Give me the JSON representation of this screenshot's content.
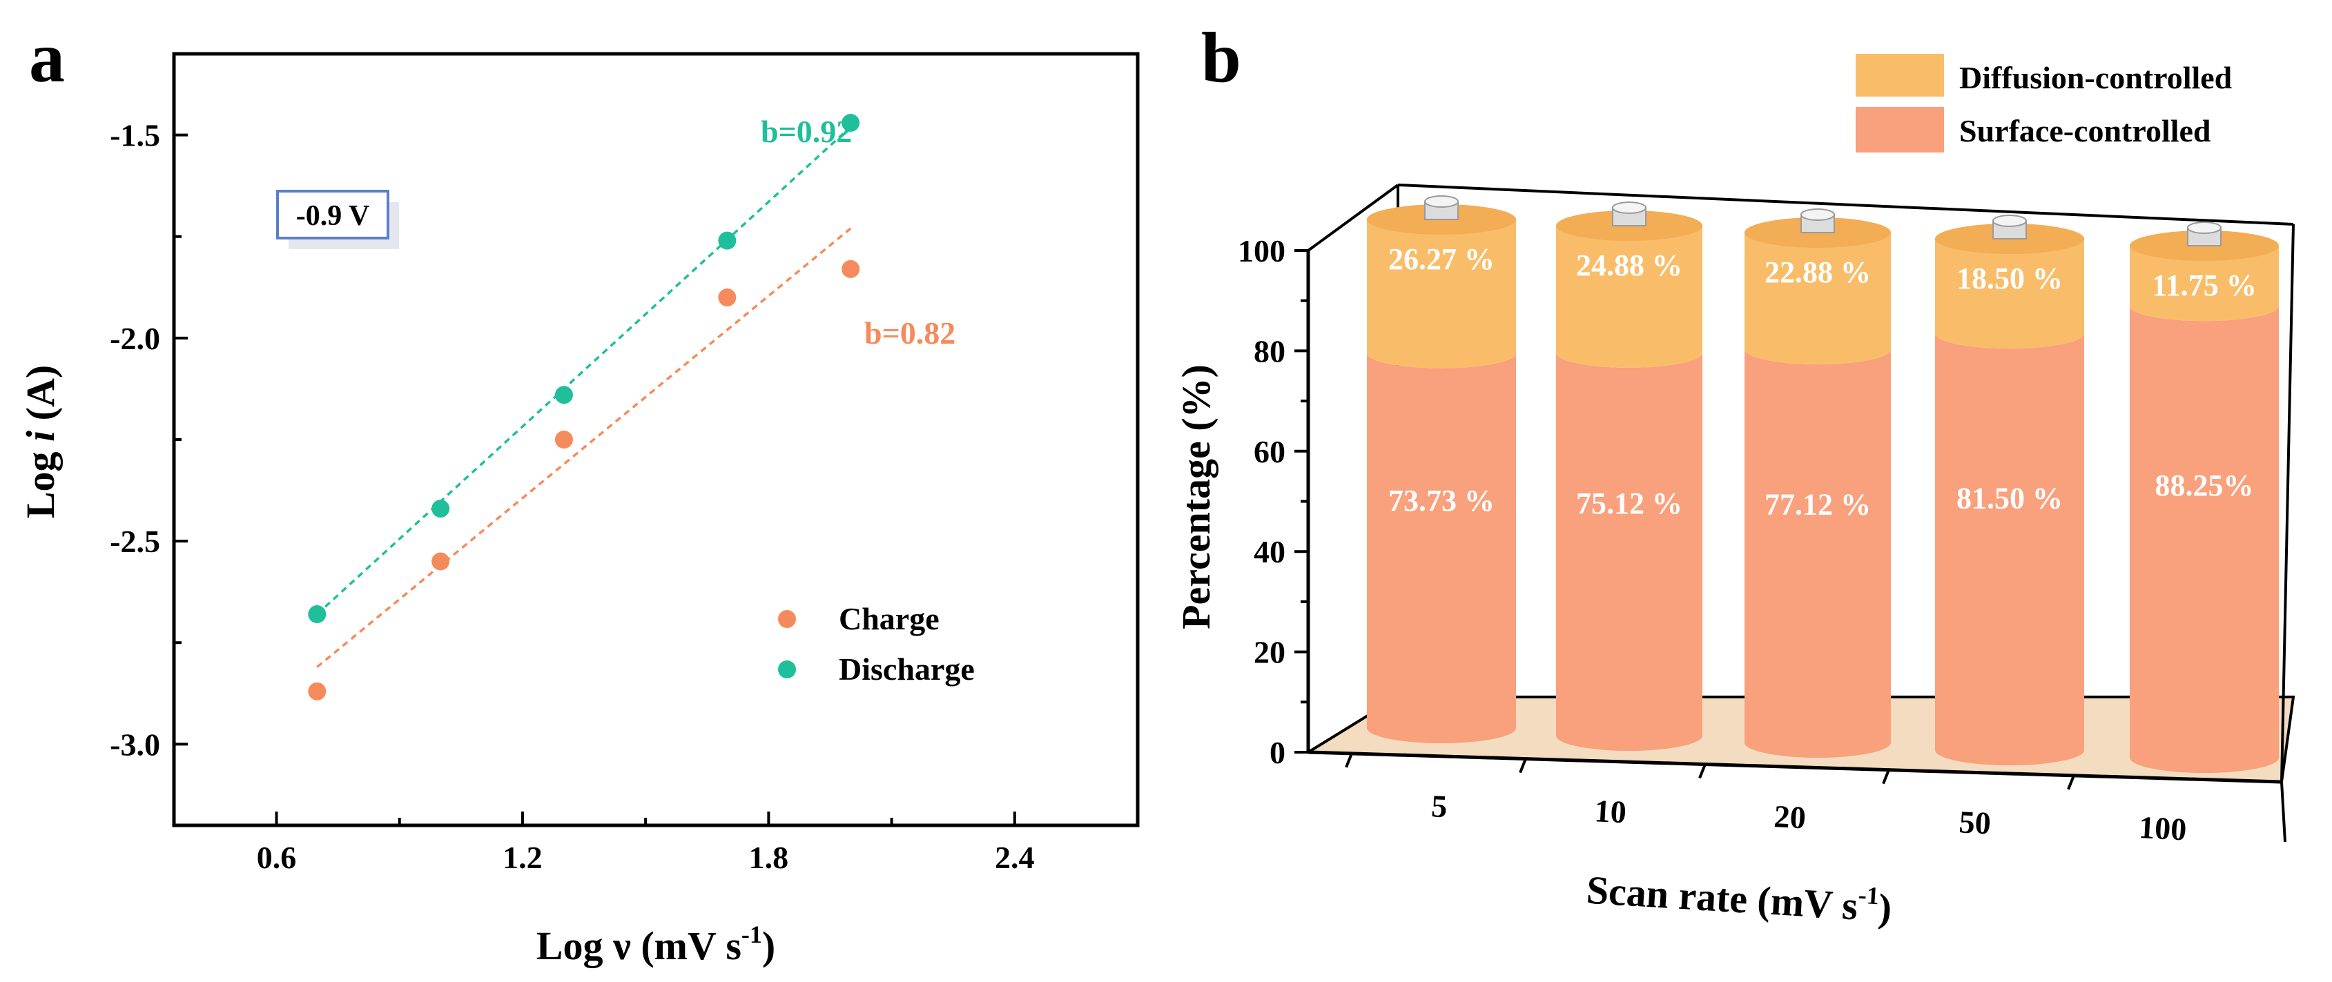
{
  "colors": {
    "charge": "#f58b5c",
    "discharge": "#1fbf9c",
    "surface": "#f9a07c",
    "diffusion": "#f9bd6a",
    "floor": "#f3dcc0",
    "label_box_border": "#5b7fc8"
  },
  "chart_data": [
    {
      "panel": "a",
      "type": "scatter",
      "xlabel": "Log ν (mV s",
      "xlabel_sup": "-1",
      "xlabel_close": ")",
      "ylabel_prefix": "Log ",
      "ylabel_italic": "i",
      "ylabel_suffix": " (A)",
      "xlim": [
        0.35,
        2.7
      ],
      "ylim": [
        -3.2,
        -1.3
      ],
      "xticks": [
        0.6,
        1.2,
        1.8,
        2.4
      ],
      "xtick_labels": [
        "0.6",
        "1.2",
        "1.8",
        "2.4"
      ],
      "yticks": [
        -3.0,
        -2.5,
        -2.0,
        -1.5
      ],
      "ytick_labels": [
        "-3.0",
        "-2.5",
        "-2.0",
        "-1.5"
      ],
      "potential_label": "-0.9 V",
      "series": [
        {
          "name": "Charge",
          "color_key": "charge",
          "x": [
            0.699,
            1.0,
            1.301,
            1.699,
            2.0
          ],
          "y": [
            -2.87,
            -2.55,
            -2.25,
            -1.9,
            -1.83
          ],
          "fit": {
            "x": [
              0.699,
              2.0
            ],
            "y": [
              -2.81,
              -1.73
            ]
          },
          "slope_label": "b=0.82"
        },
        {
          "name": "Discharge",
          "color_key": "discharge",
          "x": [
            0.699,
            1.0,
            1.301,
            1.699,
            2.0
          ],
          "y": [
            -2.68,
            -2.42,
            -2.14,
            -1.76,
            -1.47
          ],
          "fit": {
            "x": [
              0.699,
              2.0
            ],
            "y": [
              -2.68,
              -1.48
            ]
          },
          "slope_label": "b=0.92"
        }
      ]
    },
    {
      "panel": "b",
      "type": "bar",
      "style": "3d-cylinder-stacked",
      "xlabel": "Scan rate (mV s",
      "xlabel_sup": "-1",
      "xlabel_close": ")",
      "ylabel": "Percentage (%)",
      "ylim": [
        0,
        100
      ],
      "yticks": [
        0,
        20,
        40,
        60,
        80,
        100
      ],
      "ytick_labels": [
        "0",
        "20",
        "40",
        "60",
        "80",
        "100"
      ],
      "categories": [
        "5",
        "10",
        "20",
        "50",
        "100"
      ],
      "series": [
        {
          "name": "Surface-controlled",
          "color_key": "surface",
          "values": [
            73.73,
            75.12,
            77.12,
            81.5,
            88.25
          ],
          "labels": [
            "73.73 %",
            "75.12 %",
            "77.12 %",
            "81.50 %",
            "88.25%"
          ]
        },
        {
          "name": "Diffusion-controlled",
          "color_key": "diffusion",
          "values": [
            26.27,
            24.88,
            22.88,
            18.5,
            11.75
          ],
          "labels": [
            "26.27 %",
            "24.88 %",
            "22.88 %",
            "18.50 %",
            "11.75 %"
          ]
        }
      ],
      "legend": [
        "Diffusion-controlled",
        "Surface-controlled"
      ]
    }
  ]
}
